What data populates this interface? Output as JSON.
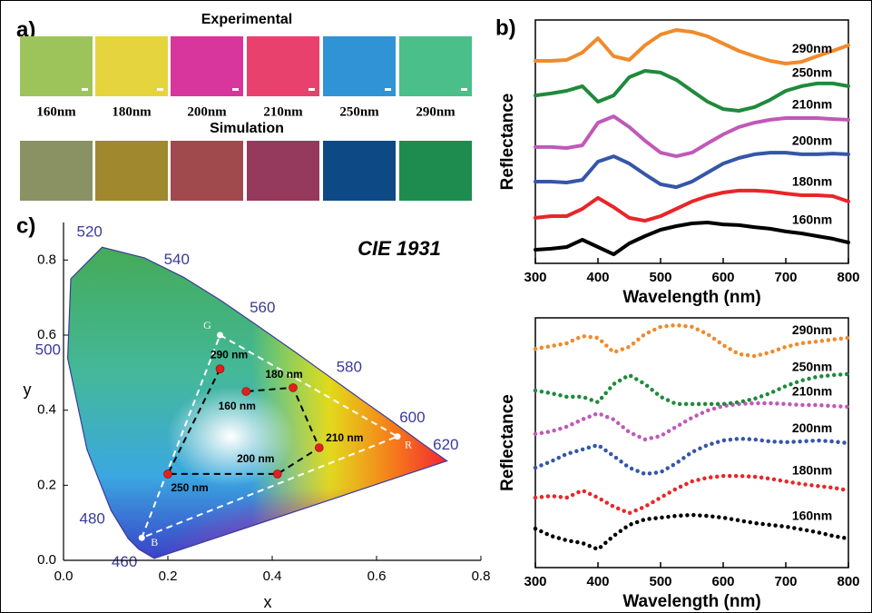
{
  "chart_data": [
    {
      "type": "swatch",
      "panel_label": "a)",
      "categories": [
        "160nm",
        "180nm",
        "200nm",
        "210nm",
        "250nm",
        "290nm"
      ],
      "rows": [
        {
          "title": "Experimental",
          "colors": [
            "#9dc45a",
            "#e6d43e",
            "#d8369c",
            "#e8416e",
            "#2f93d6",
            "#4bbf8a"
          ]
        },
        {
          "title": "Simulation",
          "colors": [
            "#8a9263",
            "#a0882e",
            "#a04a4e",
            "#953a5c",
            "#0d4a85",
            "#1e8c4e"
          ]
        }
      ]
    },
    {
      "type": "line",
      "panel_label": "b)",
      "line_style": "solid",
      "xlabel": "Wavelength (nm)",
      "ylabel": "Reflectance",
      "x": [
        300,
        325,
        350,
        375,
        400,
        425,
        450,
        475,
        500,
        525,
        550,
        575,
        600,
        625,
        650,
        675,
        700,
        725,
        750,
        775,
        800
      ],
      "xlim": [
        300,
        800
      ],
      "xticks": [
        300,
        400,
        500,
        600,
        700,
        800
      ],
      "ylim": [
        0,
        10
      ],
      "series": [
        {
          "name": "160nm",
          "color": "#000000",
          "values": [
            0.56,
            0.6,
            0.67,
            0.97,
            0.67,
            0.37,
            0.82,
            1.12,
            1.38,
            1.53,
            1.64,
            1.68,
            1.6,
            1.57,
            1.49,
            1.42,
            1.31,
            1.23,
            1.12,
            1.01,
            0.86
          ]
        },
        {
          "name": "180nm",
          "color": "#e8262a",
          "values": [
            1.87,
            1.94,
            1.94,
            2.24,
            2.69,
            2.31,
            1.87,
            1.75,
            1.94,
            2.24,
            2.54,
            2.76,
            2.91,
            2.99,
            2.99,
            2.95,
            2.87,
            2.8,
            2.8,
            2.76,
            2.54
          ]
        },
        {
          "name": "200nm",
          "color": "#3556a8",
          "values": [
            3.36,
            3.36,
            3.32,
            3.43,
            4.18,
            4.4,
            4.1,
            3.66,
            3.25,
            3.13,
            3.36,
            3.73,
            4.1,
            4.33,
            4.48,
            4.55,
            4.55,
            4.48,
            4.48,
            4.51,
            4.48
          ]
        },
        {
          "name": "210nm",
          "color": "#c059b8",
          "values": [
            4.78,
            4.78,
            4.74,
            4.85,
            5.78,
            6.04,
            5.6,
            5.04,
            4.55,
            4.4,
            4.55,
            4.93,
            5.3,
            5.6,
            5.78,
            5.9,
            5.97,
            5.97,
            5.97,
            5.93,
            5.9
          ]
        },
        {
          "name": "250nm",
          "color": "#1f8a3c",
          "values": [
            6.9,
            6.98,
            7.09,
            7.28,
            6.64,
            6.9,
            7.65,
            7.91,
            7.84,
            7.54,
            7.09,
            6.64,
            6.34,
            6.27,
            6.42,
            6.72,
            7.09,
            7.28,
            7.39,
            7.39,
            7.28
          ]
        },
        {
          "name": "290nm",
          "color": "#f08a2c",
          "values": [
            8.32,
            8.32,
            8.36,
            8.66,
            9.25,
            8.51,
            8.36,
            8.96,
            9.4,
            9.59,
            9.51,
            9.33,
            9.03,
            8.73,
            8.51,
            8.32,
            8.21,
            8.28,
            8.51,
            8.73,
            8.96
          ]
        }
      ]
    },
    {
      "type": "line",
      "line_style": "dotted",
      "xlabel": "Wavelength (nm)",
      "ylabel": "Reflectance",
      "x": [
        300,
        325,
        350,
        375,
        400,
        425,
        450,
        475,
        500,
        525,
        550,
        575,
        600,
        625,
        650,
        675,
        700,
        725,
        750,
        775,
        800
      ],
      "xlim": [
        300,
        800
      ],
      "xticks": [
        300,
        400,
        500,
        600,
        700,
        800
      ],
      "ylim": [
        0,
        10
      ],
      "series": [
        {
          "name": "160nm",
          "color": "#000000",
          "values": [
            1.56,
            1.27,
            1.09,
            0.98,
            0.73,
            1.27,
            1.71,
            1.93,
            2.0,
            2.07,
            2.11,
            2.07,
            2.0,
            1.89,
            1.78,
            1.71,
            1.64,
            1.53,
            1.42,
            1.27,
            1.16
          ]
        },
        {
          "name": "180nm",
          "color": "#e8262a",
          "values": [
            2.8,
            2.87,
            2.8,
            3.09,
            2.8,
            2.44,
            2.18,
            2.44,
            2.8,
            3.16,
            3.45,
            3.6,
            3.67,
            3.67,
            3.64,
            3.56,
            3.45,
            3.35,
            3.27,
            3.2,
            3.09
          ]
        },
        {
          "name": "200nm",
          "color": "#3556a8",
          "values": [
            4.0,
            4.25,
            4.55,
            4.73,
            4.91,
            4.47,
            4.0,
            3.75,
            3.82,
            4.18,
            4.62,
            4.91,
            5.09,
            5.16,
            5.13,
            5.05,
            5.02,
            5.05,
            5.09,
            5.05,
            4.98
          ]
        },
        {
          "name": "210nm",
          "color": "#c059b8",
          "values": [
            5.35,
            5.45,
            5.64,
            5.93,
            6.18,
            5.93,
            5.42,
            5.13,
            5.27,
            5.64,
            6.0,
            6.29,
            6.47,
            6.55,
            6.58,
            6.58,
            6.55,
            6.51,
            6.51,
            6.47,
            6.44
          ]
        },
        {
          "name": "250nm",
          "color": "#1f8a3c",
          "values": [
            7.09,
            6.98,
            6.84,
            6.84,
            6.62,
            7.35,
            7.71,
            7.35,
            6.84,
            6.55,
            6.55,
            6.55,
            6.55,
            6.62,
            6.76,
            6.98,
            7.27,
            7.49,
            7.64,
            7.71,
            7.75
          ]
        },
        {
          "name": "290nm",
          "color": "#f08a2c",
          "values": [
            8.76,
            8.87,
            8.98,
            9.27,
            9.2,
            8.62,
            8.84,
            9.35,
            9.64,
            9.71,
            9.64,
            9.35,
            8.91,
            8.55,
            8.47,
            8.62,
            8.84,
            8.98,
            9.05,
            9.13,
            9.2
          ]
        }
      ]
    },
    {
      "type": "chromaticity",
      "panel_label": "c)",
      "title": "CIE 1931",
      "xlabel": "x",
      "ylabel": "y",
      "xlim": [
        0,
        0.8
      ],
      "ylim": [
        0,
        0.9
      ],
      "xticks": [
        {
          "value": 0,
          "label": "0.0"
        },
        0.2,
        0.4,
        0.6,
        0.8
      ],
      "yticks": [
        {
          "value": 0,
          "label": "0.0"
        },
        0.2,
        0.4,
        0.6,
        0.8
      ],
      "locus": {
        "color": "#3a3a9a",
        "labels": [
          null,
          "460",
          null,
          "480",
          null,
          "500",
          null,
          "520",
          null,
          "540",
          null,
          "560",
          null,
          "580",
          null,
          "600",
          "620",
          null
        ],
        "x": [
          0.174,
          0.144,
          0.124,
          0.091,
          0.045,
          0.008,
          0.014,
          0.074,
          0.155,
          0.23,
          0.302,
          0.373,
          0.444,
          0.512,
          0.575,
          0.627,
          0.691,
          0.735
        ],
        "y": [
          0.005,
          0.03,
          0.058,
          0.133,
          0.295,
          0.538,
          0.75,
          0.834,
          0.806,
          0.754,
          0.692,
          0.624,
          0.555,
          0.487,
          0.424,
          0.373,
          0.308,
          0.265
        ]
      },
      "primaries": {
        "color": "#ffffff",
        "labels": [
          "G",
          "R",
          "B"
        ],
        "x": [
          0.3,
          0.64,
          0.15
        ],
        "y": [
          0.6,
          0.33,
          0.06
        ]
      },
      "samples": {
        "color": "#e02020",
        "labels": [
          "290 nm",
          "250 nm",
          "200 nm",
          "210 nm",
          "180 nm",
          "160 nm"
        ],
        "x": [
          0.3,
          0.2,
          0.41,
          0.49,
          0.44,
          0.35
        ],
        "y": [
          0.51,
          0.23,
          0.23,
          0.3,
          0.46,
          0.45
        ]
      }
    }
  ]
}
